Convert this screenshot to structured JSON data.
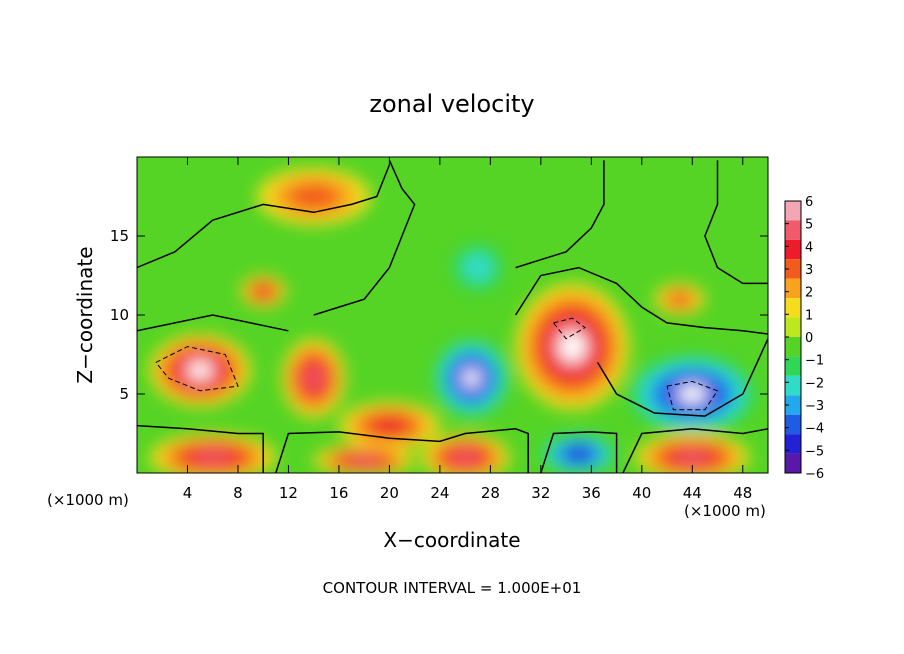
{
  "chart_data": {
    "type": "heatmap",
    "title": "zonal velocity",
    "xlabel": "X−coordinate",
    "ylabel": "Z−coordinate",
    "x_unit_left": "(×1000 m)",
    "x_unit_right": "(×1000 m)",
    "footer": "CONTOUR INTERVAL = 1.000E+01",
    "xlim": [
      0,
      50
    ],
    "ylim": [
      0,
      20
    ],
    "xticks": [
      {
        "value": 4,
        "label": "4"
      },
      {
        "value": 8,
        "label": "8"
      },
      {
        "value": 12,
        "label": "12"
      },
      {
        "value": 16,
        "label": "16"
      },
      {
        "value": 20,
        "label": "20"
      },
      {
        "value": 24,
        "label": "24"
      },
      {
        "value": 28,
        "label": "28"
      },
      {
        "value": 32,
        "label": "32"
      },
      {
        "value": 36,
        "label": "36"
      },
      {
        "value": 40,
        "label": "40"
      },
      {
        "value": 44,
        "label": "44"
      },
      {
        "value": 48,
        "label": "48"
      }
    ],
    "yticks": [
      {
        "value": 5,
        "label": "5"
      },
      {
        "value": 10,
        "label": "10"
      },
      {
        "value": 15,
        "label": "15"
      }
    ],
    "colorbar": {
      "min": -6,
      "max": 6,
      "labels": [
        "6",
        "5",
        "4",
        "3",
        "2",
        "1",
        "0",
        "−1",
        "−2",
        "−3",
        "−4",
        "−5",
        "−6"
      ],
      "colors": [
        "#f4a6b4",
        "#f05a6a",
        "#ee1c2a",
        "#f25a1e",
        "#f9a21c",
        "#f5dc1c",
        "#bce822",
        "#55d426",
        "#2ed854",
        "#30dcc8",
        "#22a8ec",
        "#1e5ce6",
        "#2222d4",
        "#5a18aa"
      ]
    },
    "field_blobs": [
      {
        "x": 14,
        "z": 17.5,
        "rx": 4.5,
        "rz": 1.8,
        "v": 3
      },
      {
        "x": 10,
        "z": 11.5,
        "rx": 1.8,
        "rz": 1.0,
        "v": 4
      },
      {
        "x": 5,
        "z": 6.5,
        "rx": 4.0,
        "rz": 2.3,
        "v": 5.5
      },
      {
        "x": 14,
        "z": 6,
        "rx": 2.5,
        "rz": 2.5,
        "v": 4.5
      },
      {
        "x": 20,
        "z": 3,
        "rx": 4,
        "rz": 1.5,
        "v": 3.5
      },
      {
        "x": 34.5,
        "z": 8,
        "rx": 4.5,
        "rz": 4,
        "v": 6
      },
      {
        "x": 43,
        "z": 11,
        "rx": 2,
        "rz": 1,
        "v": 3
      },
      {
        "x": 26.5,
        "z": 6,
        "rx": 3,
        "rz": 2.5,
        "v": -6
      },
      {
        "x": 44,
        "z": 5,
        "rx": 5,
        "rz": 2.5,
        "v": -5.5
      },
      {
        "x": 27,
        "z": 13,
        "rx": 2,
        "rz": 1.5,
        "v": -2
      },
      {
        "x": 6,
        "z": 1,
        "rx": 5,
        "rz": 1.5,
        "v": 5
      },
      {
        "x": 18,
        "z": 0.8,
        "rx": 4,
        "rz": 1,
        "v": 4.5
      },
      {
        "x": 26,
        "z": 1,
        "rx": 3.5,
        "rz": 1.5,
        "v": 4.5
      },
      {
        "x": 35,
        "z": 1.2,
        "rx": 3,
        "rz": 1.3,
        "v": -5
      },
      {
        "x": 44,
        "z": 1,
        "rx": 4.5,
        "rz": 1.5,
        "v": 5
      }
    ]
  }
}
